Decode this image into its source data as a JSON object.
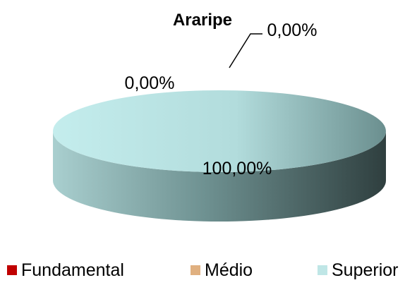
{
  "chart_data": {
    "type": "pie",
    "title": "Araripe",
    "categories": [
      "Fundamental",
      "Médio",
      "Superior"
    ],
    "values": [
      0.0,
      0.0,
      100.0
    ],
    "data_labels": [
      "0,00%",
      "0,00%",
      "100,00%"
    ],
    "colors": [
      "#c00000",
      "#e0b080",
      "#bfe6e6"
    ],
    "legend_position": "bottom",
    "style": "3d"
  }
}
